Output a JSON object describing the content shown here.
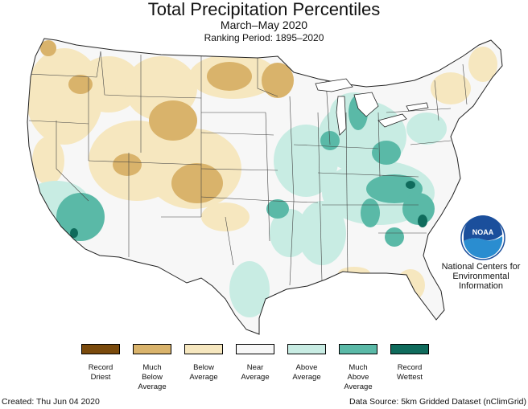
{
  "header": {
    "title": "Total Precipitation Percentiles",
    "subtitle": "March–May 2020",
    "ranking_period": "Ranking Period: 1895–2020"
  },
  "legend": [
    {
      "label": "Record\nDriest",
      "color": "#7a4a0c"
    },
    {
      "label": "Much\nBelow\nAverage",
      "color": "#d9b36b"
    },
    {
      "label": "Below\nAverage",
      "color": "#f6e7bf"
    },
    {
      "label": "Near\nAverage",
      "color": "#f7f7f7"
    },
    {
      "label": "Above\nAverage",
      "color": "#c8ece3"
    },
    {
      "label": "Much\nAbove\nAverage",
      "color": "#5ab9a7"
    },
    {
      "label": "Record\nWettest",
      "color": "#0f6b5c"
    }
  ],
  "logo": {
    "text": "NOAA",
    "org_name": "National Centers for\nEnvironmental\nInformation"
  },
  "footer": {
    "created": "Created: Thu Jun 04 2020",
    "source": "Data Source: 5km Gridded Dataset (nClimGrid)"
  }
}
